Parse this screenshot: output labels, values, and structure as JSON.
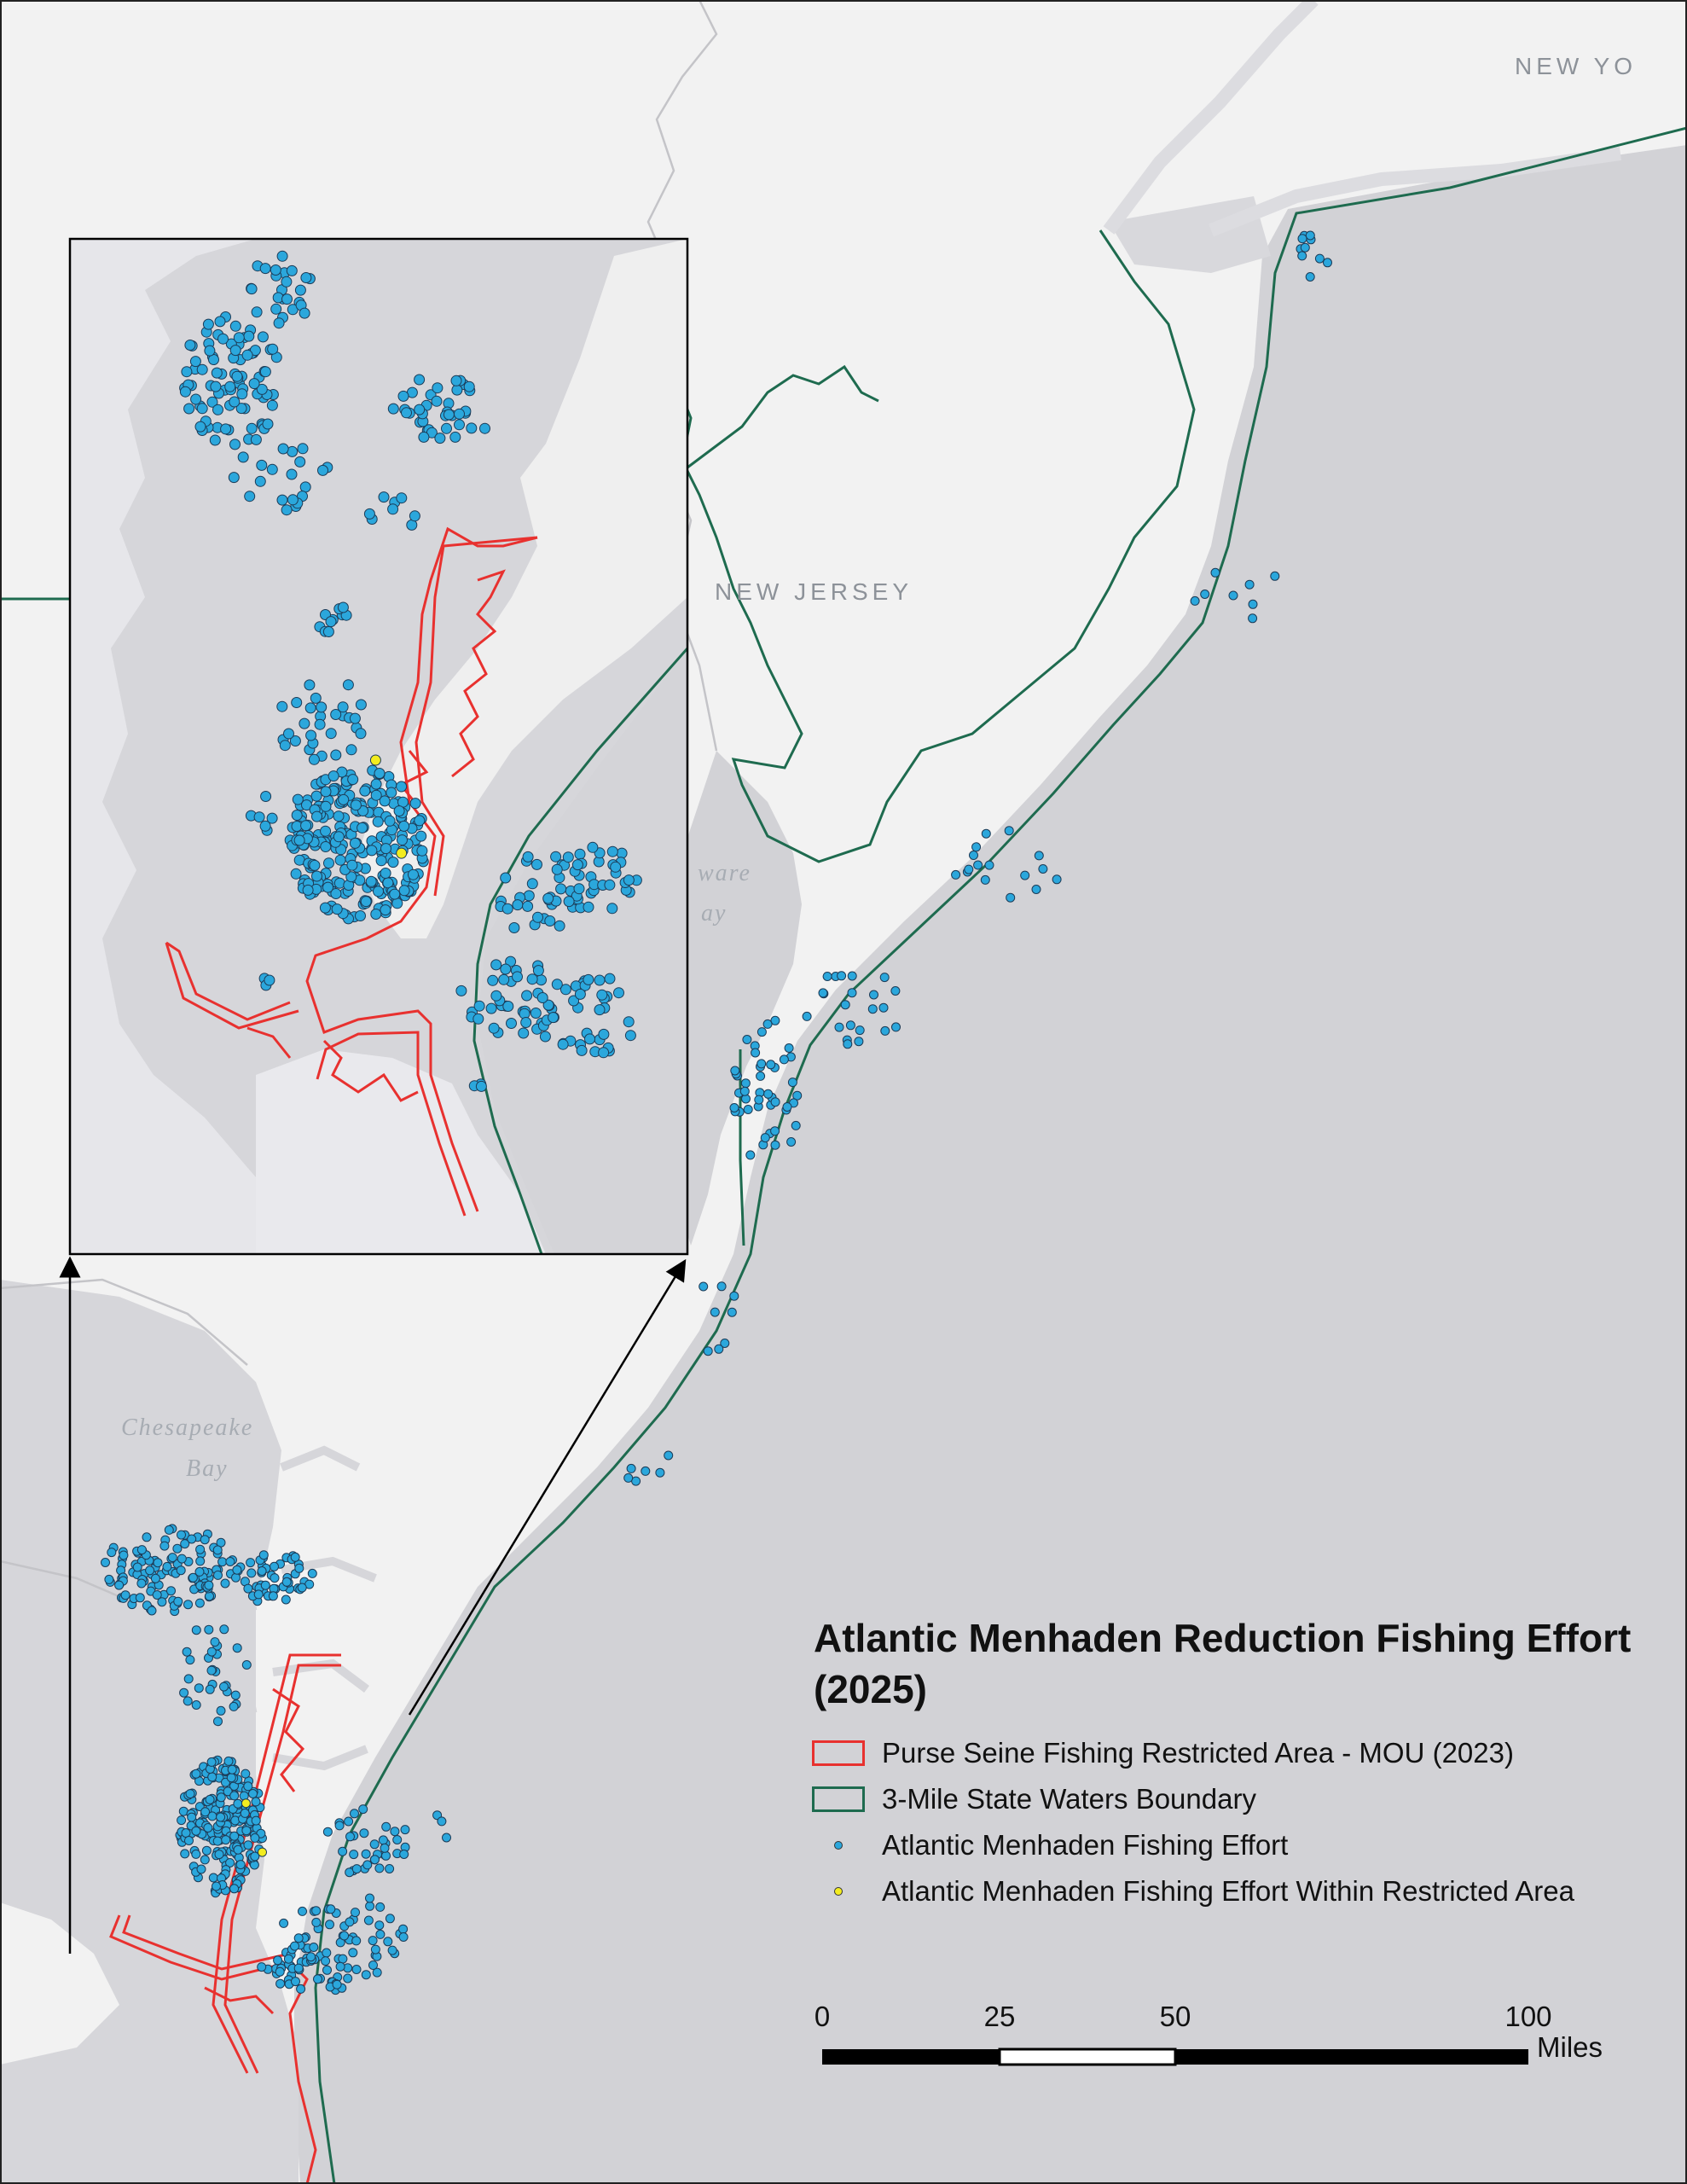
{
  "map": {
    "title": "Atlantic Menhaden Reduction Fishing Effort (2025)",
    "place_labels": {
      "new_jersey": "NEW JERSEY",
      "new_york": "NEW YO",
      "chesapeake_line1": "Chesapeake",
      "chesapeake_line2": "Bay",
      "delaware_line1": "ware",
      "delaware_line2": "ay"
    },
    "colors": {
      "ocean": "#d2d2d6",
      "land": "#f2f2f2",
      "restricted_area": "#e8312f",
      "state_boundary": "#1e6b4f",
      "effort_point": "#2ba7dc",
      "effort_in_restricted": "#f3ec1f"
    }
  },
  "legend": {
    "items": [
      {
        "label": "Purse Seine Fishing Restricted Area - MOU (2023)",
        "symbol": "red-outline-box"
      },
      {
        "label": "3-Mile State Waters Boundary",
        "symbol": "green-outline-box"
      },
      {
        "label": "Atlantic Menhaden Fishing Effort",
        "symbol": "blue-dot"
      },
      {
        "label": "Atlantic Menhaden Fishing Effort Within Restricted Area",
        "symbol": "yellow-dot"
      }
    ]
  },
  "scale_bar": {
    "ticks": [
      "0",
      "25",
      "50",
      "100"
    ],
    "units": "Miles"
  }
}
